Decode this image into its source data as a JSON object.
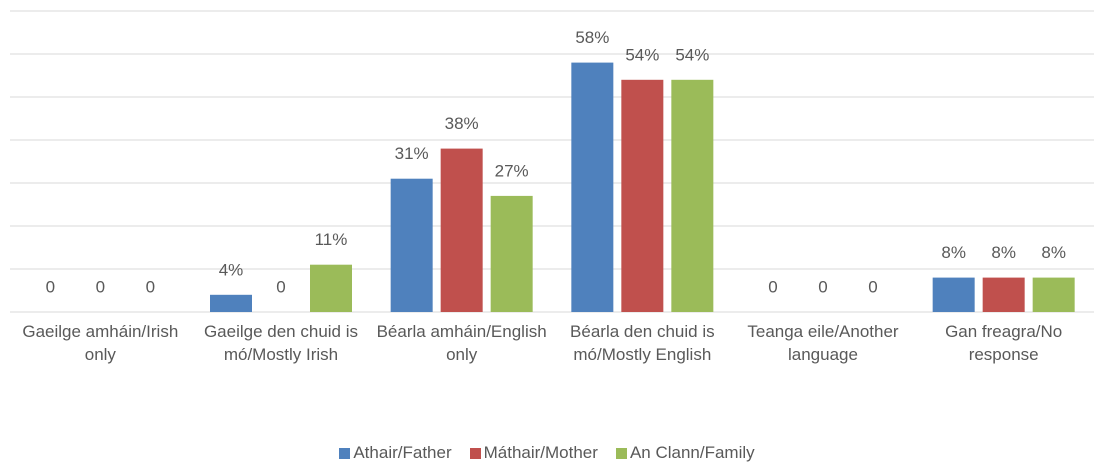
{
  "chart_data": {
    "type": "bar",
    "categories": [
      "Gaeilge amháin/Irish only",
      "Gaeilge den chuid is mó/Mostly Irish",
      "Béarla amháin/English only",
      "Béarla den chuid is mó/Mostly English",
      "Teanga eile/Another language",
      "Gan freagra/No response"
    ],
    "series": [
      {
        "name": "Athair/Father",
        "color": "#4f81bd",
        "values": [
          0,
          4,
          31,
          58,
          0,
          8
        ],
        "value_labels": [
          "0",
          "4%",
          "31%",
          "58%",
          "0",
          "8%"
        ]
      },
      {
        "name": "Máthair/Mother",
        "color": "#c0504d",
        "values": [
          0,
          0,
          38,
          54,
          0,
          8
        ],
        "value_labels": [
          "0",
          "0",
          "38%",
          "54%",
          "0",
          "8%"
        ]
      },
      {
        "name": "An Clann/Family",
        "color": "#9bbb59",
        "values": [
          0,
          11,
          27,
          54,
          0,
          8
        ],
        "value_labels": [
          "0",
          "11%",
          "27%",
          "54%",
          "0",
          "8%"
        ]
      }
    ],
    "ylim": [
      0,
      70
    ],
    "yticks": [
      0,
      10,
      20,
      30,
      40,
      50,
      60,
      70
    ],
    "grid": true
  }
}
